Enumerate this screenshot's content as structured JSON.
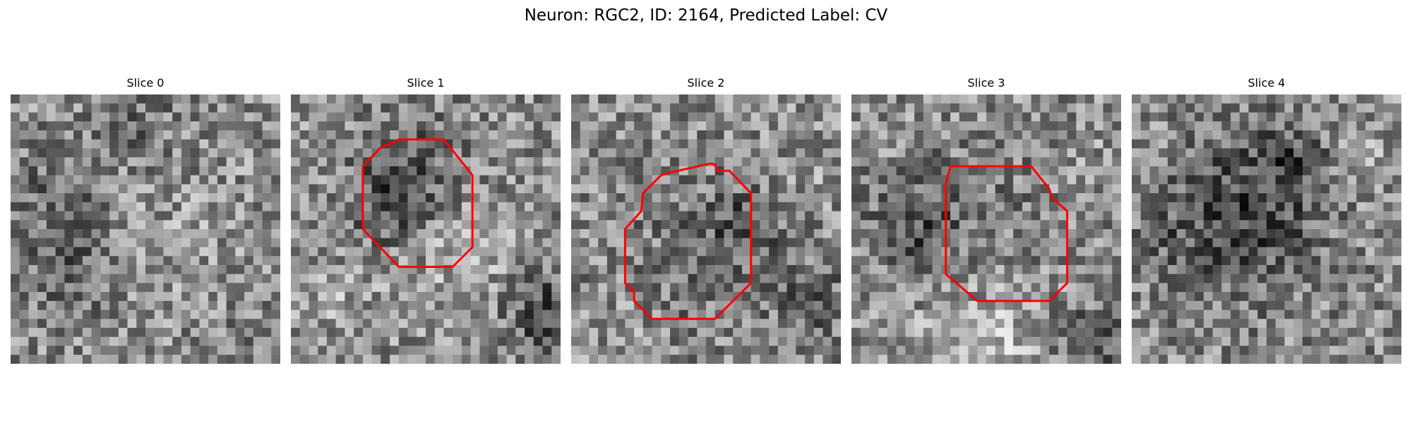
{
  "figure": {
    "title": "Neuron: RGC2, ID: 2164, Predicted Label: CV"
  },
  "colors": {
    "contour": "#ff0000"
  },
  "panels": [
    {
      "title": "Slice 0",
      "has_contour": false
    },
    {
      "title": "Slice 1",
      "has_contour": true
    },
    {
      "title": "Slice 2",
      "has_contour": true
    },
    {
      "title": "Slice 3",
      "has_contour": true
    },
    {
      "title": "Slice 4",
      "has_contour": false
    }
  ]
}
